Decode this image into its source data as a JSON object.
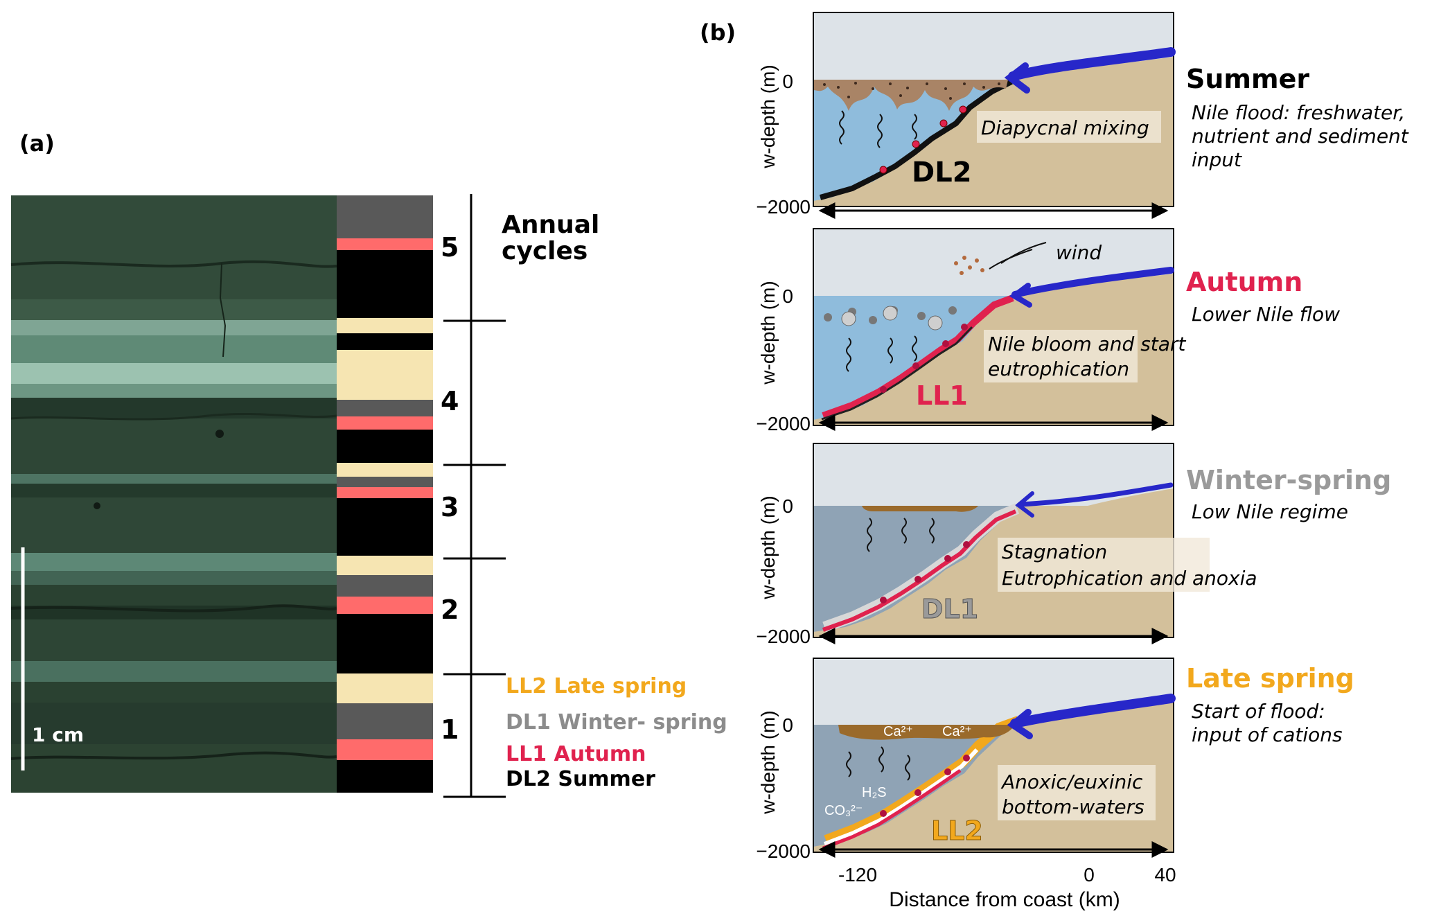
{
  "panel_a": {
    "label": "(a)",
    "scale_label": "1 cm",
    "cycles_title_line1": "Annual",
    "cycles_title_line2": "cycles",
    "cycle_numbers": [
      "5",
      "4",
      "3",
      "2",
      "1"
    ],
    "legend": {
      "ll2": "LL2 Late spring",
      "dl1": "DL1 Winter- spring",
      "ll1": "LL1 Autumn",
      "dl2": "DL2 Summer"
    },
    "colors": {
      "dl2": "#000000",
      "ll1": "#ff6b6b",
      "dl1": "#595959",
      "ll2": "#f6e5b2",
      "ll2_text": "#f2a81d",
      "dl1_text": "#8c8c8c",
      "ll1_text": "#e0224e",
      "dl2_text": "#000000"
    }
  },
  "panel_b": {
    "label": "(b)",
    "ylabel": "w-depth (m)",
    "xlabel": "Distance from coast (km)",
    "ytick_top": "0",
    "ytick_bottom": "−2000",
    "xticks": [
      "-120",
      "0",
      "40"
    ],
    "summer": {
      "title": "Summer",
      "desc1": "Nile flood: freshwater,",
      "desc2": "nutrient and sediment",
      "desc3": "input",
      "process": "Diapycnal mixing",
      "layer": "DL2",
      "title_color": "#000000"
    },
    "autumn": {
      "title": "Autumn",
      "desc1": "Lower Nile flow",
      "process1": "Nile bloom and start",
      "process2": "eutrophication",
      "wind": "wind",
      "layer": "LL1",
      "title_color": "#e0224e"
    },
    "winter": {
      "title": "Winter-spring",
      "desc1": "Low Nile regime",
      "process1": "Stagnation",
      "process2": "Eutrophication and anoxia",
      "layer": "DL1",
      "title_color": "#9a9a9a"
    },
    "late": {
      "title": "Late spring",
      "desc1": "Start of flood:",
      "desc2": "input of cations",
      "process1": "Anoxic/euxinic",
      "process2": "bottom-waters",
      "layer": "LL2",
      "title_color": "#f2a81d",
      "ca1": "Ca²⁺",
      "ca2": "Ca²⁺",
      "h2s": "H₂S",
      "co3": "CO₃²⁻"
    }
  }
}
